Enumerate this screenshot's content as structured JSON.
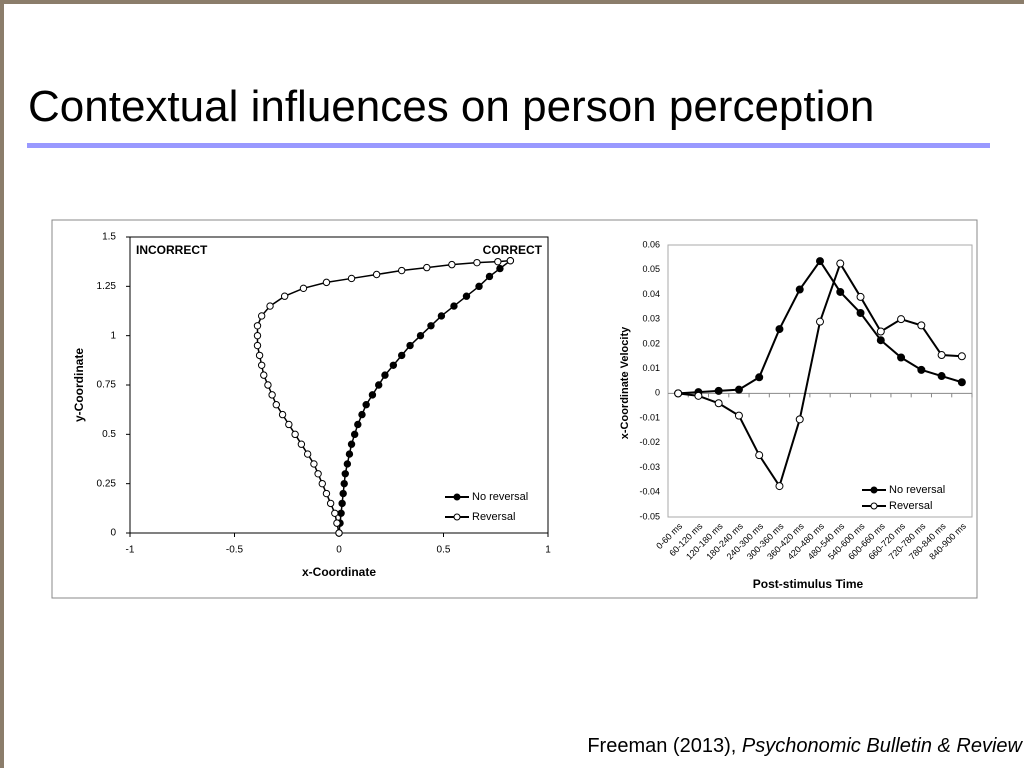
{
  "slide": {
    "title": "Contextual influences on person perception",
    "citation": {
      "text": "Freeman (2013),",
      "journal": "Psychonomic Bulletin & Review"
    }
  },
  "chart_data": [
    {
      "type": "scatter",
      "xlabel": "x-Coordinate",
      "ylabel": "y-Coordinate",
      "annotations": [
        "INCORRECT",
        "CORRECT"
      ],
      "xlim": [
        -1,
        1
      ],
      "xticks": [
        -1,
        -0.5,
        0,
        0.5,
        1
      ],
      "ylim": [
        0,
        1.5
      ],
      "yticks": [
        0,
        0.25,
        0.5,
        0.75,
        1,
        1.25,
        1.5
      ],
      "grid": false,
      "legend": "lower right",
      "series": [
        {
          "name": "No reversal",
          "color": "#000000",
          "marker_fill": "#000000",
          "x": [
            0,
            0.005,
            0.01,
            0.015,
            0.02,
            0.025,
            0.03,
            0.04,
            0.05,
            0.06,
            0.075,
            0.09,
            0.11,
            0.13,
            0.16,
            0.19,
            0.22,
            0.26,
            0.3,
            0.34,
            0.39,
            0.44,
            0.49,
            0.55,
            0.61,
            0.67,
            0.72,
            0.77,
            0.82
          ],
          "values": [
            0,
            0.05,
            0.1,
            0.15,
            0.2,
            0.25,
            0.3,
            0.35,
            0.4,
            0.45,
            0.5,
            0.55,
            0.6,
            0.65,
            0.7,
            0.75,
            0.8,
            0.85,
            0.9,
            0.95,
            1.0,
            1.05,
            1.1,
            1.15,
            1.2,
            1.25,
            1.3,
            1.34,
            1.38
          ]
        },
        {
          "name": "Reversal",
          "color": "#000000",
          "marker_fill": "#ffffff",
          "x": [
            0,
            -0.01,
            -0.02,
            -0.04,
            -0.06,
            -0.08,
            -0.1,
            -0.12,
            -0.15,
            -0.18,
            -0.21,
            -0.24,
            -0.27,
            -0.3,
            -0.32,
            -0.34,
            -0.36,
            -0.37,
            -0.38,
            -0.39,
            -0.39,
            -0.39,
            -0.37,
            -0.33,
            -0.26,
            -0.17,
            -0.06,
            0.06,
            0.18,
            0.3,
            0.42,
            0.54,
            0.66,
            0.76,
            0.82
          ],
          "values": [
            0,
            0.05,
            0.1,
            0.15,
            0.2,
            0.25,
            0.3,
            0.35,
            0.4,
            0.45,
            0.5,
            0.55,
            0.6,
            0.65,
            0.7,
            0.75,
            0.8,
            0.85,
            0.9,
            0.95,
            1.0,
            1.05,
            1.1,
            1.15,
            1.2,
            1.24,
            1.27,
            1.29,
            1.31,
            1.33,
            1.345,
            1.36,
            1.37,
            1.375,
            1.38
          ]
        }
      ]
    },
    {
      "type": "line",
      "xlabel": "Post-stimulus Time",
      "ylabel": "x-Coordinate Velocity",
      "categories": [
        "0-60 ms",
        "60-120 ms",
        "120-180 ms",
        "180-240 ms",
        "240-300 ms",
        "300-360 ms",
        "360-420 ms",
        "420-480 ms",
        "480-540 ms",
        "540-600 ms",
        "600-660 ms",
        "660-720 ms",
        "720-780 ms",
        "780-840 ms",
        "840-900 ms"
      ],
      "ylim": [
        -0.05,
        0.06
      ],
      "yticks": [
        -0.05,
        -0.04,
        -0.03,
        -0.02,
        -0.01,
        0,
        0.01,
        0.02,
        0.03,
        0.04,
        0.05,
        0.06
      ],
      "grid": false,
      "legend": "lower right",
      "series": [
        {
          "name": "No reversal",
          "color": "#000000",
          "marker_fill": "#000000",
          "values": [
            0,
            0.0005,
            0.001,
            0.0015,
            0.0065,
            0.026,
            0.042,
            0.0535,
            0.041,
            0.0325,
            0.0215,
            0.0145,
            0.0095,
            0.007,
            0.0045
          ]
        },
        {
          "name": "Reversal",
          "color": "#000000",
          "marker_fill": "#ffffff",
          "values": [
            0,
            -0.001,
            -0.004,
            -0.009,
            -0.025,
            -0.0375,
            -0.0105,
            0.029,
            0.0525,
            0.039,
            0.025,
            0.03,
            0.0275,
            0.0155,
            0.015
          ]
        }
      ]
    }
  ]
}
